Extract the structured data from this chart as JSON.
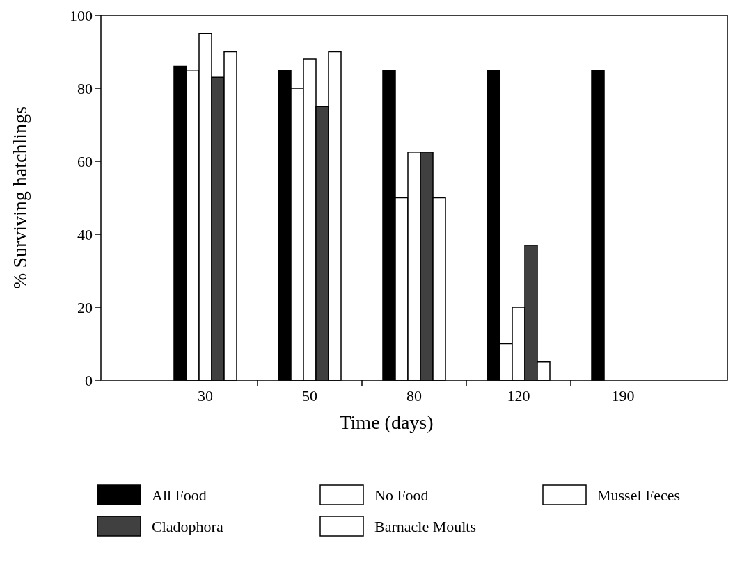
{
  "chart_data": {
    "type": "bar",
    "xlabel": "Time (days)",
    "ylabel": "% Surviving hatchlings",
    "categories": [
      "30",
      "50",
      "80",
      "120",
      "190"
    ],
    "series": [
      {
        "name": "All Food",
        "color": "#000000",
        "values": [
          86,
          85,
          85,
          85,
          85
        ]
      },
      {
        "name": "No Food",
        "color": "#ffffff",
        "values": [
          85,
          80,
          50,
          10,
          null
        ]
      },
      {
        "name": "Mussel Feces",
        "color": "#ffffff",
        "values": [
          95,
          88,
          62.5,
          20,
          null
        ]
      },
      {
        "name": "Cladophora",
        "color": "#404040",
        "values": [
          83,
          75,
          62.5,
          37,
          null
        ]
      },
      {
        "name": "Barnacle Moults",
        "color": "#ffffff",
        "values": [
          90,
          90,
          50,
          5,
          null
        ]
      }
    ],
    "ylim": [
      0,
      100
    ],
    "yticks": [
      0,
      20,
      40,
      60,
      80,
      100
    ],
    "legend": "bottom",
    "grid": false
  }
}
